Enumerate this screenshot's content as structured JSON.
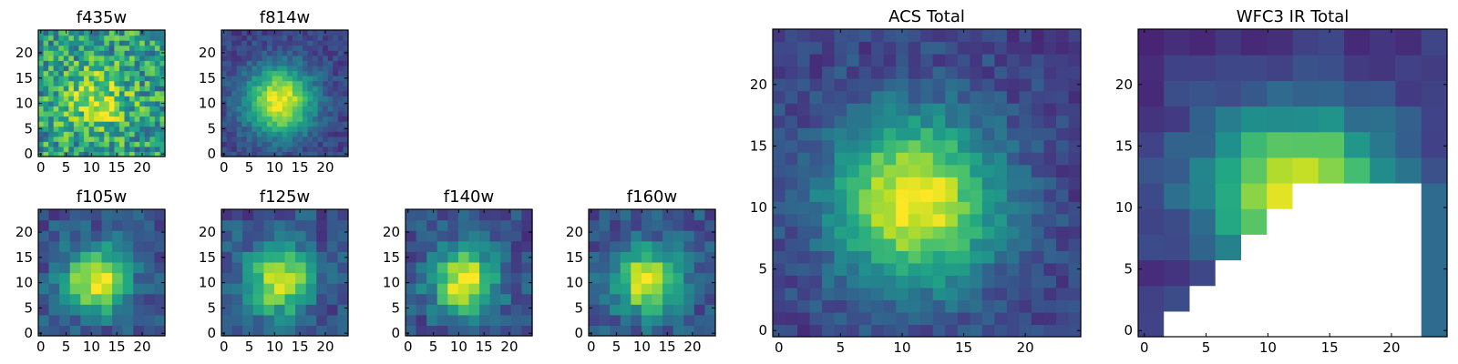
{
  "figure": {
    "description_colormap": "viridis",
    "background": "#ffffff"
  },
  "chart_data": [
    {
      "type": "heatmap",
      "title": "f435w",
      "style": "noisy",
      "grid": 25,
      "xticks": [
        0,
        5,
        10,
        15,
        20
      ],
      "yticks": [
        0,
        5,
        10,
        15,
        20
      ],
      "xlim": [
        0,
        24
      ],
      "ylim": [
        0,
        24
      ]
    },
    {
      "type": "heatmap",
      "title": "f814w",
      "style": "smooth",
      "grid": 25,
      "xticks": [
        0,
        5,
        10,
        15,
        20
      ],
      "yticks": [
        0,
        5,
        10,
        15,
        20
      ],
      "xlim": [
        0,
        24
      ],
      "ylim": [
        0,
        24
      ]
    },
    {
      "type": "heatmap",
      "title": "f105w",
      "style": "blocky",
      "grid": 12,
      "xticks": [
        0,
        5,
        10,
        15,
        20
      ],
      "yticks": [
        0,
        5,
        10,
        15,
        20
      ],
      "xlim": [
        0,
        24
      ],
      "ylim": [
        0,
        24
      ]
    },
    {
      "type": "heatmap",
      "title": "f125w",
      "style": "blocky",
      "grid": 12,
      "xticks": [
        0,
        5,
        10,
        15,
        20
      ],
      "yticks": [
        0,
        5,
        10,
        15,
        20
      ],
      "xlim": [
        0,
        24
      ],
      "ylim": [
        0,
        24
      ]
    },
    {
      "type": "heatmap",
      "title": "f140w",
      "style": "blocky",
      "grid": 12,
      "xticks": [
        0,
        5,
        10,
        15,
        20
      ],
      "yticks": [
        0,
        5,
        10,
        15,
        20
      ],
      "xlim": [
        0,
        24
      ],
      "ylim": [
        0,
        24
      ]
    },
    {
      "type": "heatmap",
      "title": "f160w",
      "style": "blocky",
      "grid": 12,
      "xticks": [
        0,
        5,
        10,
        15,
        20
      ],
      "yticks": [
        0,
        5,
        10,
        15,
        20
      ],
      "xlim": [
        0,
        24
      ],
      "ylim": [
        0,
        24
      ]
    },
    {
      "type": "heatmap",
      "title": "ACS Total",
      "style": "smooth",
      "grid": 25,
      "xticks": [
        0,
        5,
        10,
        15,
        20
      ],
      "yticks": [
        0,
        5,
        10,
        15,
        20
      ],
      "xlim": [
        0,
        24
      ],
      "ylim": [
        0,
        24
      ]
    },
    {
      "type": "heatmap",
      "title": "WFC3 IR Total",
      "style": "masked",
      "grid": 12,
      "xticks": [
        0,
        5,
        10,
        15,
        20
      ],
      "yticks": [
        0,
        5,
        10,
        15,
        20
      ],
      "xlim": [
        0,
        24
      ],
      "ylim": [
        0,
        24
      ]
    }
  ]
}
